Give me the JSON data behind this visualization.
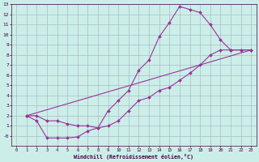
{
  "xlabel": "Windchill (Refroidissement éolien,°C)",
  "bg_color": "#cceee8",
  "grid_color": "#aabbc8",
  "line_color": "#993399",
  "xlim": [
    -0.5,
    23.5
  ],
  "ylim": [
    -1,
    13
  ],
  "xticks": [
    0,
    1,
    2,
    3,
    4,
    5,
    6,
    7,
    8,
    9,
    10,
    11,
    12,
    13,
    14,
    15,
    16,
    17,
    18,
    19,
    20,
    21,
    22,
    23
  ],
  "yticks": [
    0,
    1,
    2,
    3,
    4,
    5,
    6,
    7,
    8,
    9,
    10,
    11,
    12,
    13
  ],
  "ytick_labels": [
    "-0",
    "1",
    "2",
    "3",
    "4",
    "5",
    "6",
    "7",
    "8",
    "9",
    "10",
    "11",
    "12",
    "13"
  ],
  "line1_x": [
    1,
    2,
    3,
    4,
    5,
    6,
    7,
    8,
    9,
    10,
    11,
    12,
    13,
    14,
    15,
    16,
    17,
    18,
    19,
    20,
    21,
    22,
    23
  ],
  "line1_y": [
    2.0,
    2.0,
    1.5,
    1.5,
    1.2,
    1.0,
    1.0,
    0.8,
    2.5,
    3.5,
    4.5,
    6.5,
    7.5,
    9.8,
    11.2,
    12.8,
    12.5,
    12.2,
    11.0,
    9.5,
    8.5,
    8.5,
    8.5
  ],
  "line2_x": [
    1,
    2,
    3,
    4,
    5,
    6,
    7,
    8,
    9,
    10,
    11,
    12,
    13,
    14,
    15,
    16,
    17,
    18,
    19,
    20,
    21,
    22,
    23
  ],
  "line2_y": [
    2.0,
    1.5,
    -0.2,
    -0.2,
    -0.2,
    -0.1,
    0.5,
    0.8,
    1.0,
    1.5,
    2.5,
    3.5,
    3.8,
    4.5,
    4.8,
    5.5,
    6.2,
    7.0,
    8.0,
    8.5,
    8.5,
    8.5,
    8.5
  ],
  "line3_x": [
    1,
    23
  ],
  "line3_y": [
    2.0,
    8.5
  ]
}
